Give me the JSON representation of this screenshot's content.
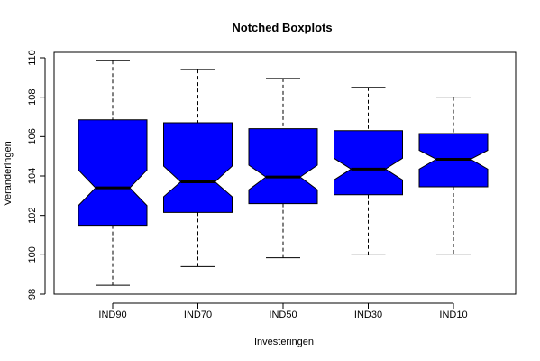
{
  "chart_data": {
    "type": "boxplot",
    "notched": true,
    "title": "Notched Boxplots",
    "xlabel": "Investeringen",
    "ylabel": "Veranderingen",
    "ylim": [
      98,
      110
    ],
    "yticks": [
      98,
      100,
      102,
      104,
      106,
      108,
      110
    ],
    "box_color": "#0000ff",
    "categories": [
      "IND90",
      "IND70",
      "IND50",
      "IND30",
      "IND10"
    ],
    "boxes": [
      {
        "name": "IND90",
        "whisker_low": 98.45,
        "q1": 101.5,
        "notch_low": 102.5,
        "median": 103.4,
        "notch_high": 104.3,
        "q3": 106.85,
        "whisker_high": 109.85
      },
      {
        "name": "IND70",
        "whisker_low": 99.4,
        "q1": 102.15,
        "notch_low": 102.95,
        "median": 103.7,
        "notch_high": 104.5,
        "q3": 106.7,
        "whisker_high": 109.4
      },
      {
        "name": "IND50",
        "whisker_low": 99.85,
        "q1": 102.6,
        "notch_low": 103.3,
        "median": 103.95,
        "notch_high": 104.55,
        "q3": 106.4,
        "whisker_high": 108.95
      },
      {
        "name": "IND30",
        "whisker_low": 100.0,
        "q1": 103.05,
        "notch_low": 103.8,
        "median": 104.35,
        "notch_high": 104.9,
        "q3": 106.3,
        "whisker_high": 108.5
      },
      {
        "name": "IND10",
        "whisker_low": 100.0,
        "q1": 103.45,
        "notch_low": 104.35,
        "median": 104.85,
        "notch_high": 105.3,
        "q3": 106.15,
        "whisker_high": 108.0
      }
    ]
  }
}
